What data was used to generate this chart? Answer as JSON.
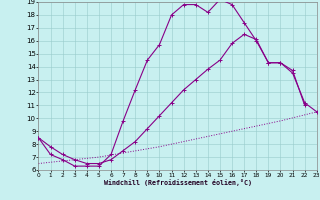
{
  "xlabel": "Windchill (Refroidissement éolien,°C)",
  "xlim": [
    0,
    23
  ],
  "ylim": [
    6,
    19
  ],
  "yticks": [
    6,
    7,
    8,
    9,
    10,
    11,
    12,
    13,
    14,
    15,
    16,
    17,
    18,
    19
  ],
  "xticks": [
    0,
    1,
    2,
    3,
    4,
    5,
    6,
    7,
    8,
    9,
    10,
    11,
    12,
    13,
    14,
    15,
    16,
    17,
    18,
    19,
    20,
    21,
    22,
    23
  ],
  "background_color": "#c8f0f0",
  "line_color": "#880088",
  "grid_color": "#99cccc",
  "line1_x": [
    0,
    1,
    2,
    3,
    4,
    5,
    6,
    7,
    8,
    9,
    10,
    11,
    12,
    13,
    14,
    15,
    16,
    17,
    18,
    19,
    20,
    21,
    22
  ],
  "line1_y": [
    8.5,
    7.2,
    6.8,
    6.3,
    6.3,
    6.3,
    7.2,
    9.8,
    12.2,
    14.5,
    15.7,
    18.0,
    18.8,
    18.8,
    18.2,
    19.2,
    18.8,
    17.4,
    16.0,
    14.3,
    14.3,
    13.7,
    11.0
  ],
  "line2_x": [
    0,
    1,
    2,
    3,
    4,
    5,
    6,
    7,
    8,
    9,
    10,
    11,
    12,
    13,
    14,
    15,
    16,
    17,
    18,
    19,
    20,
    21,
    22,
    23
  ],
  "line2_y": [
    8.5,
    7.8,
    7.2,
    6.8,
    6.5,
    6.5,
    6.8,
    7.5,
    8.2,
    9.2,
    10.2,
    11.2,
    12.2,
    13.0,
    13.8,
    14.5,
    15.8,
    16.5,
    16.1,
    14.3,
    14.3,
    13.5,
    11.2,
    10.5
  ],
  "line3_x": [
    0,
    5,
    10,
    15,
    20,
    23
  ],
  "line3_y": [
    6.5,
    7.0,
    7.8,
    8.8,
    9.8,
    10.5
  ]
}
